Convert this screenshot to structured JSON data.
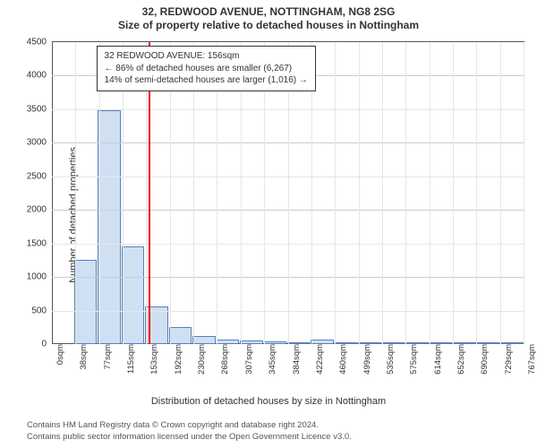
{
  "title": {
    "line1": "32, REDWOOD AVENUE, NOTTINGHAM, NG8 2SG",
    "line2": "Size of property relative to detached houses in Nottingham"
  },
  "chart": {
    "type": "histogram",
    "ylabel": "Number of detached properties",
    "xlabel": "Distribution of detached houses by size in Nottingham",
    "ylim": [
      0,
      4500
    ],
    "ytick_step": 500,
    "yticks": [
      0,
      500,
      1000,
      1500,
      2000,
      2500,
      3000,
      3500,
      4000,
      4500
    ],
    "xticks": [
      "0sqm",
      "38sqm",
      "77sqm",
      "115sqm",
      "153sqm",
      "192sqm",
      "230sqm",
      "268sqm",
      "307sqm",
      "345sqm",
      "384sqm",
      "422sqm",
      "460sqm",
      "499sqm",
      "535sqm",
      "575sqm",
      "614sqm",
      "652sqm",
      "690sqm",
      "729sqm",
      "767sqm"
    ],
    "bar_values": [
      0,
      1250,
      3480,
      1450,
      560,
      250,
      120,
      70,
      50,
      40,
      25,
      65,
      10,
      5,
      5,
      5,
      5,
      5,
      5,
      5
    ],
    "bar_fill": "#cfe0f3",
    "bar_border": "#5a7fb8",
    "background_color": "#ffffff",
    "grid_color": "#e6e6e6",
    "grid_major_color": "#cccccc",
    "axis_color": "#555555",
    "marker": {
      "x_index": 4,
      "fraction_into_bin": 0.08,
      "color": "#ff0000"
    },
    "annotation": {
      "lines": [
        "32 REDWOOD AVENUE: 156sqm",
        "← 86% of detached houses are smaller (6,267)",
        "14% of semi-detached houses are larger (1,016) →"
      ],
      "border_color": "#333333",
      "bg_color": "#ffffff",
      "fontsize": 10
    }
  },
  "footer": {
    "line1": "Contains HM Land Registry data © Crown copyright and database right 2024.",
    "line2": "Contains public sector information licensed under the Open Government Licence v3.0."
  }
}
